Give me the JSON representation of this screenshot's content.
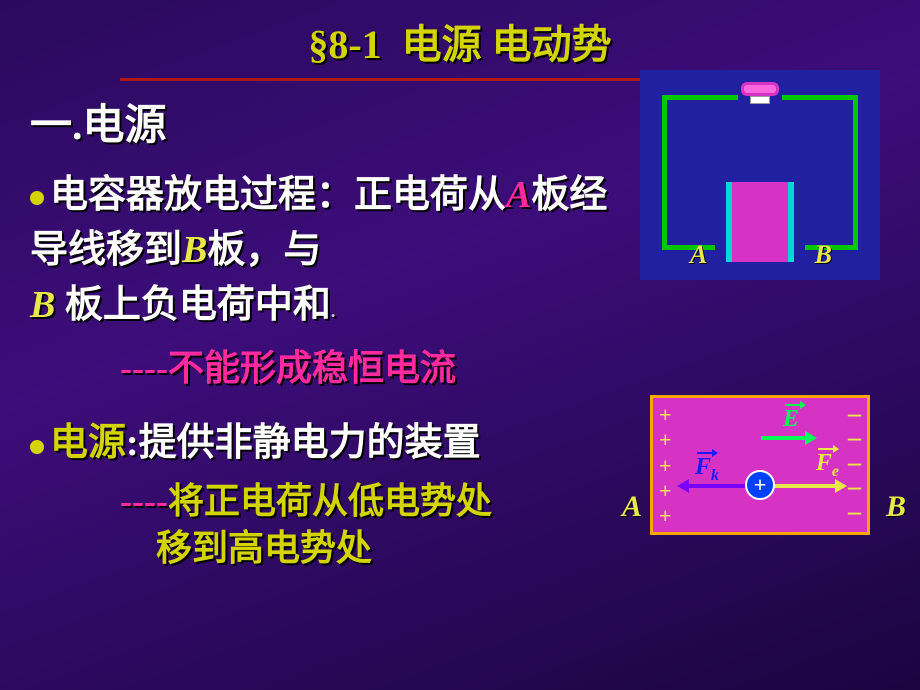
{
  "title_prefix": "§8-1",
  "title_text": "电源 电动势",
  "heading1": "一.电源",
  "p1_pre": "电容器放电过程：正电荷从",
  "p1_a": "A",
  "p1_mid": "板经导线移到",
  "p1_b": "B",
  "p1_mid2": "板，与",
  "p1_b2": "B",
  "p1_end": " 板上负电荷中和",
  "sub1_dash": "----",
  "sub1_text": "不能形成稳恒电流",
  "p2_label": "电源",
  "p2_colon": ":",
  "p2_text": "提供非静电力的装置",
  "sub2_dash": "----",
  "sub2_line1": "将正电荷从低电势处",
  "sub2_line2": "移到高电势处",
  "diag1": {
    "label_A": "A",
    "label_B": "B",
    "bg_color": "#2020a0",
    "circuit_color": "#00c800",
    "plate_color": "#00d8d8",
    "cap_fill": "#d633c4"
  },
  "diag2": {
    "bg_color": "#d633c4",
    "border_color": "#ffa500",
    "E_label": "E",
    "Fk_label": "F",
    "Fk_sub": "k",
    "Fe_label": "F",
    "Fe_sub": "e",
    "plus": "+\n+\n+\n+\n+",
    "minus": "–\n–\n–\n–\n–",
    "charge_sign": "+",
    "label_A": "A",
    "label_B": "B",
    "color_E": "#00ff55",
    "color_Fk_text": "#1a1aff",
    "color_Fk_arrow": "#7a00ff",
    "color_Fe": "#e8e84a",
    "charge_color": "#0040ff"
  }
}
